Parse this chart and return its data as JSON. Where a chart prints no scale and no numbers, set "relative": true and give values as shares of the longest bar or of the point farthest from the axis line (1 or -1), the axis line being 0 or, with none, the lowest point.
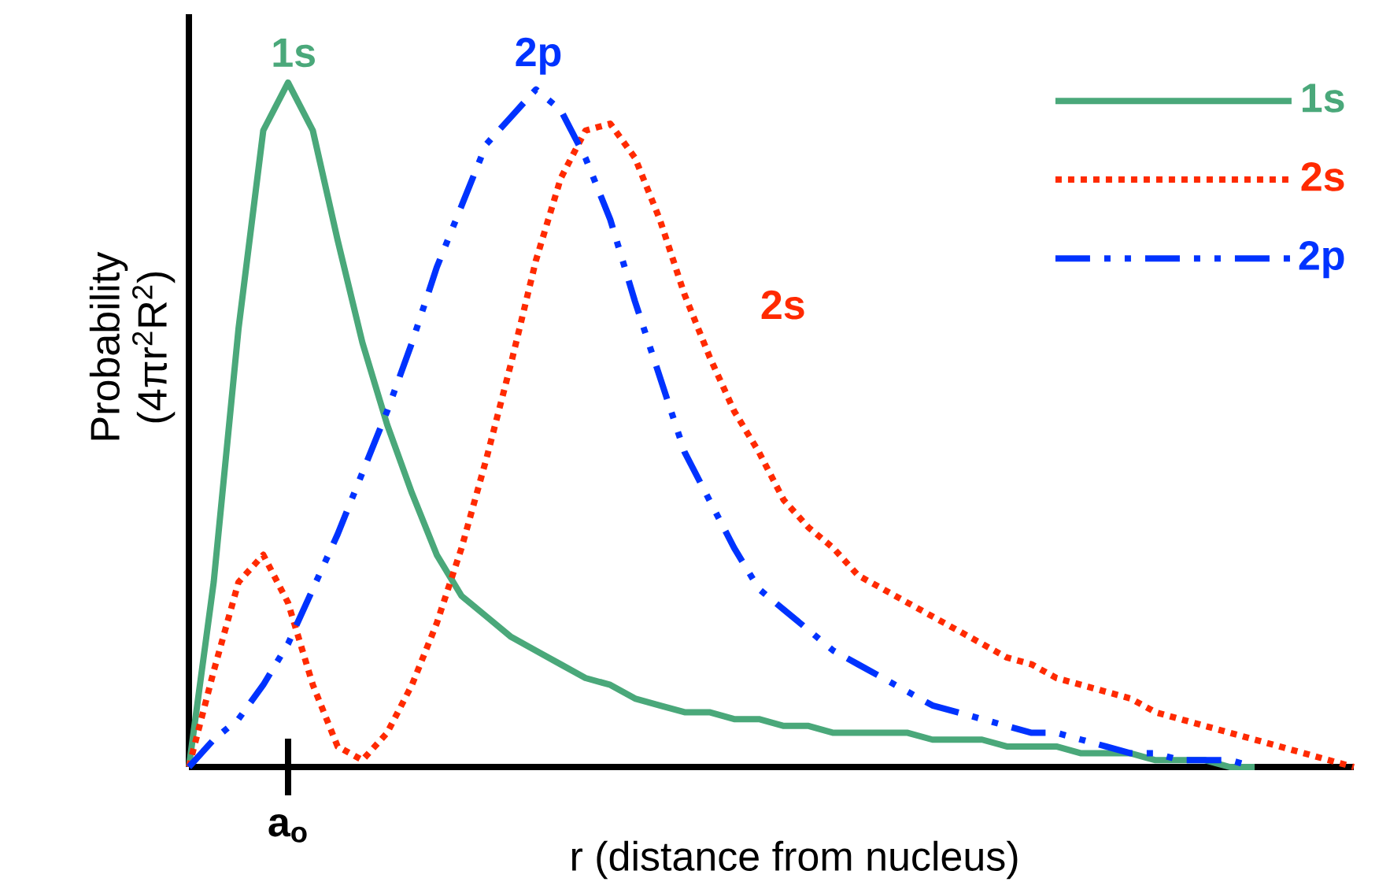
{
  "chart_data": {
    "type": "line",
    "relative": true,
    "xlabel": "r  (distance from nucleus)",
    "ylabel": "Probability (4πr$^{2}$R$^{2}$)",
    "legend": "top right",
    "categories": [
      null,
      null,
      null,
      null,
      null,
      null,
      null,
      null,
      null,
      null,
      null,
      null,
      null,
      null,
      null,
      null,
      null,
      null,
      null,
      null,
      null,
      null,
      null,
      null,
      null,
      null,
      null,
      null,
      null,
      null,
      null,
      null,
      null,
      null,
      null,
      null,
      null,
      null,
      null,
      null,
      null,
      null,
      null,
      null,
      null,
      null,
      null,
      null
    ],
    "series": [
      {
        "name": "1s",
        "color": "#4aa87a",
        "line_style": "solid",
        "values": [
          0,
          0.27,
          0.64,
          0.93,
          1.0,
          0.93,
          0.77,
          0.62,
          0.5,
          0.4,
          0.31,
          0.25,
          0.22,
          0.19,
          0.17,
          0.15,
          0.13,
          0.12,
          0.1,
          0.09,
          0.08,
          0.08,
          0.07,
          0.07,
          0.06,
          0.06,
          0.05,
          0.05,
          0.05,
          0.05,
          0.04,
          0.04,
          0.04,
          0.03,
          0.03,
          0.03,
          0.02,
          0.02,
          0.02,
          0.01,
          0.01,
          0.01,
          0,
          0,
          null,
          null,
          null,
          null
        ]
      },
      {
        "name": "2s",
        "color": "#ff2a00",
        "line_style": "dotted",
        "values": [
          0,
          0.14,
          0.27,
          0.31,
          0.24,
          0.12,
          0.03,
          0.01,
          0.05,
          0.12,
          0.21,
          0.32,
          0.45,
          0.59,
          0.74,
          0.86,
          0.93,
          0.94,
          0.89,
          0.8,
          0.69,
          0.6,
          0.52,
          0.46,
          0.39,
          0.35,
          0.32,
          0.28,
          0.26,
          0.24,
          0.22,
          0.2,
          0.18,
          0.16,
          0.15,
          0.13,
          0.12,
          0.11,
          0.1,
          0.08,
          0.07,
          0.06,
          0.05,
          0.04,
          0.03,
          0.02,
          0.01,
          0
        ]
      },
      {
        "name": "2p",
        "color": "#0033ff",
        "line_style": "dashed",
        "values": [
          0,
          0.04,
          0.07,
          0.12,
          0.18,
          0.26,
          0.34,
          0.43,
          0.52,
          0.62,
          0.73,
          0.82,
          0.91,
          0.95,
          0.99,
          0.96,
          0.89,
          0.8,
          0.68,
          0.57,
          0.46,
          0.39,
          0.32,
          0.26,
          0.23,
          0.2,
          0.17,
          0.15,
          0.13,
          0.11,
          0.09,
          0.08,
          0.07,
          0.06,
          0.05,
          0.05,
          0.04,
          0.03,
          0.02,
          0.02,
          0.01,
          0.01,
          0.01,
          0,
          null,
          null,
          null,
          null
        ]
      }
    ],
    "annotations": [
      "1s",
      "2p",
      "2s",
      "a$_{o}$"
    ]
  }
}
